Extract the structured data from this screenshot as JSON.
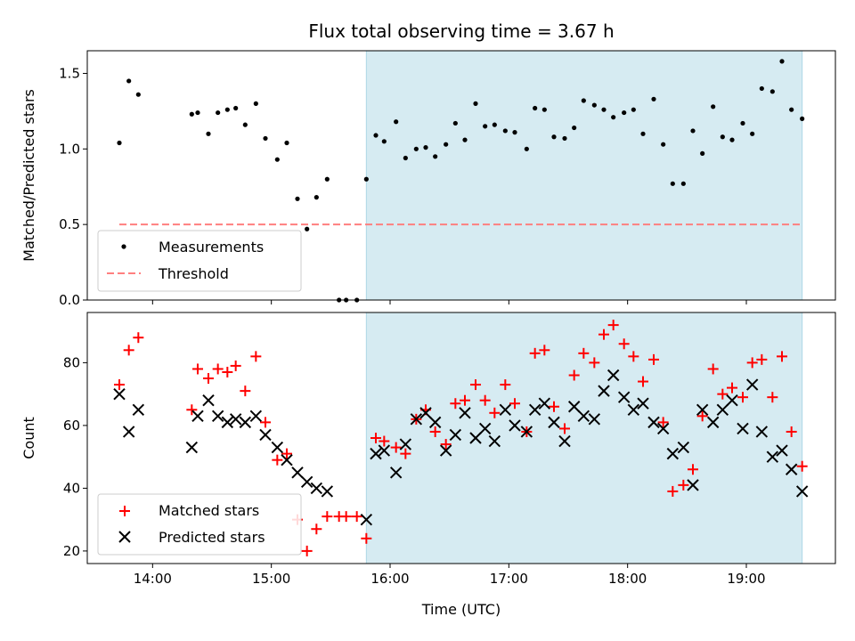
{
  "chart_data": {
    "type": "scatter",
    "title": "Flux total observing time = 3.67 h",
    "xlabel": "Time (UTC)",
    "x_tick_labels": [
      "14:00",
      "15:00",
      "16:00",
      "17:00",
      "18:00",
      "19:00"
    ],
    "x_tick_hours": [
      14,
      15,
      16,
      17,
      18,
      19
    ],
    "xlim_hours": [
      13.45,
      19.75
    ],
    "shaded_interval_hours": [
      15.8,
      19.47
    ],
    "shaded_color": "#add8e6",
    "panels": [
      {
        "id": "top",
        "ylabel": "Matched/Predicted stars",
        "ylim": [
          0,
          1.65
        ],
        "y_ticks": [
          0.0,
          0.5,
          1.0,
          1.5
        ],
        "y_tick_labels": [
          "0.0",
          "0.5",
          "1.0",
          "1.5"
        ],
        "legend_position": "lower-left",
        "series": [
          {
            "name": "Measurements",
            "marker": "dot",
            "color": "#000000",
            "x": [
              13.72,
              13.8,
              13.88,
              14.33,
              14.38,
              14.47,
              14.55,
              14.63,
              14.7,
              14.78,
              14.87,
              14.95,
              15.05,
              15.13,
              15.22,
              15.3,
              15.38,
              15.47,
              15.57,
              15.63,
              15.72,
              15.8,
              15.88,
              15.95,
              16.05,
              16.13,
              16.22,
              16.3,
              16.38,
              16.47,
              16.55,
              16.63,
              16.72,
              16.8,
              16.88,
              16.97,
              17.05,
              17.15,
              17.22,
              17.3,
              17.38,
              17.47,
              17.55,
              17.63,
              17.72,
              17.8,
              17.88,
              17.97,
              18.05,
              18.13,
              18.22,
              18.3,
              18.38,
              18.47,
              18.55,
              18.63,
              18.72,
              18.8,
              18.88,
              18.97,
              19.05,
              19.13,
              19.22,
              19.3,
              19.38,
              19.47
            ],
            "y": [
              1.04,
              1.45,
              1.36,
              1.23,
              1.24,
              1.1,
              1.24,
              1.26,
              1.27,
              1.16,
              1.3,
              1.07,
              0.93,
              1.04,
              0.67,
              0.47,
              0.68,
              0.8,
              0.0,
              0.0,
              0.0,
              0.8,
              1.09,
              1.05,
              1.18,
              0.94,
              1.0,
              1.01,
              0.95,
              1.03,
              1.17,
              1.06,
              1.3,
              1.15,
              1.16,
              1.12,
              1.11,
              1.0,
              1.27,
              1.26,
              1.08,
              1.07,
              1.14,
              1.32,
              1.29,
              1.26,
              1.21,
              1.24,
              1.26,
              1.1,
              1.33,
              1.03,
              0.77,
              0.77,
              1.12,
              0.97,
              1.28,
              1.08,
              1.06,
              1.17,
              1.1,
              1.4,
              1.38,
              1.58,
              1.26,
              1.2
            ]
          },
          {
            "name": "Threshold",
            "marker": "dashed-line",
            "color": "#ff7f7f",
            "x": [
              13.72,
              19.45
            ],
            "y": [
              0.5,
              0.5
            ]
          }
        ]
      },
      {
        "id": "bottom",
        "ylabel": "Count",
        "ylim": [
          16,
          96
        ],
        "y_ticks": [
          20,
          40,
          60,
          80
        ],
        "y_tick_labels": [
          "20",
          "40",
          "60",
          "80"
        ],
        "legend_position": "lower-left",
        "series": [
          {
            "name": "Matched stars",
            "marker": "plus",
            "color": "#ff0000",
            "x": [
              13.72,
              13.8,
              13.88,
              14.33,
              14.38,
              14.47,
              14.55,
              14.63,
              14.7,
              14.78,
              14.87,
              14.95,
              15.05,
              15.13,
              15.22,
              15.3,
              15.38,
              15.47,
              15.57,
              15.63,
              15.72,
              15.8,
              15.88,
              15.95,
              16.05,
              16.13,
              16.22,
              16.3,
              16.38,
              16.47,
              16.55,
              16.63,
              16.72,
              16.8,
              16.88,
              16.97,
              17.05,
              17.15,
              17.22,
              17.3,
              17.38,
              17.47,
              17.55,
              17.63,
              17.72,
              17.8,
              17.88,
              17.97,
              18.05,
              18.13,
              18.22,
              18.3,
              18.38,
              18.47,
              18.55,
              18.63,
              18.72,
              18.8,
              18.88,
              18.97,
              19.05,
              19.13,
              19.22,
              19.3,
              19.38,
              19.47
            ],
            "y": [
              73,
              84,
              88,
              65,
              78,
              75,
              78,
              77,
              79,
              71,
              82,
              61,
              49,
              51,
              30,
              20,
              27,
              31,
              31,
              31,
              31,
              24,
              56,
              55,
              53,
              51,
              62,
              65,
              58,
              54,
              67,
              68,
              73,
              68,
              64,
              73,
              67,
              58,
              83,
              84,
              66,
              59,
              76,
              83,
              80,
              89,
              92,
              86,
              82,
              74,
              81,
              61,
              39,
              41,
              46,
              63,
              78,
              70,
              72,
              69,
              80,
              81,
              69,
              82,
              58,
              47
            ]
          },
          {
            "name": "Predicted stars",
            "marker": "x",
            "color": "#000000",
            "x": [
              13.72,
              13.8,
              13.88,
              14.33,
              14.38,
              14.47,
              14.55,
              14.63,
              14.7,
              14.78,
              14.87,
              14.95,
              15.05,
              15.13,
              15.22,
              15.3,
              15.38,
              15.47,
              15.8,
              15.88,
              15.95,
              16.05,
              16.13,
              16.22,
              16.3,
              16.38,
              16.47,
              16.55,
              16.63,
              16.72,
              16.8,
              16.88,
              16.97,
              17.05,
              17.15,
              17.22,
              17.3,
              17.38,
              17.47,
              17.55,
              17.63,
              17.72,
              17.8,
              17.88,
              17.97,
              18.05,
              18.13,
              18.22,
              18.3,
              18.38,
              18.47,
              18.55,
              18.63,
              18.72,
              18.8,
              18.88,
              18.97,
              19.05,
              19.13,
              19.22,
              19.3,
              19.38,
              19.47
            ],
            "y": [
              70,
              58,
              65,
              53,
              63,
              68,
              63,
              61,
              62,
              61,
              63,
              57,
              53,
              49,
              45,
              42,
              40,
              39,
              30,
              51,
              52,
              45,
              54,
              62,
              64,
              61,
              52,
              57,
              64,
              56,
              59,
              55,
              65,
              60,
              58,
              65,
              67,
              61,
              55,
              66,
              63,
              62,
              71,
              76,
              69,
              65,
              67,
              61,
              59,
              51,
              53,
              41,
              65,
              61,
              65,
              68,
              59,
              73,
              58,
              50,
              52,
              46,
              39
            ]
          }
        ]
      }
    ]
  }
}
